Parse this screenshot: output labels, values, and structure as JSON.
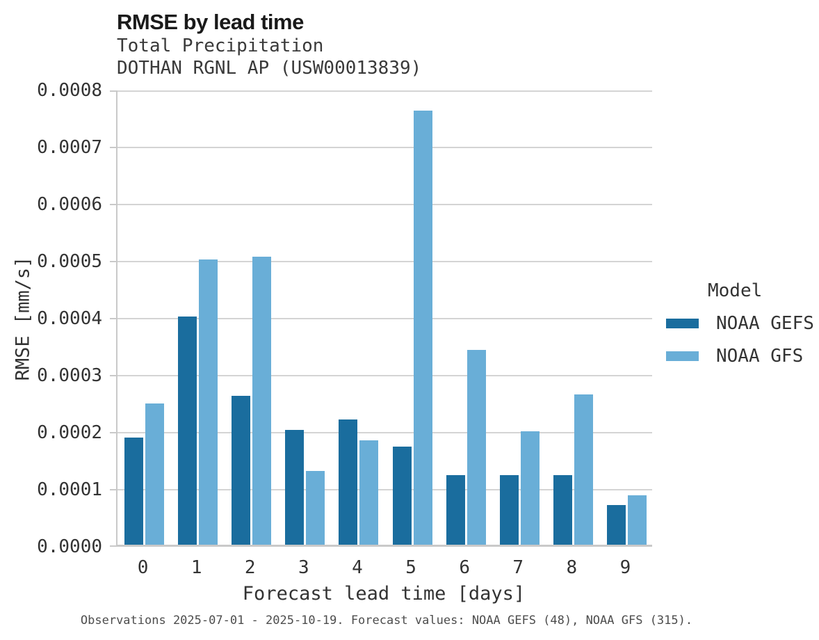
{
  "title": "RMSE by lead time",
  "subtitle_line1": "Total Precipitation",
  "subtitle_line2": "DOTHAN RGNL AP (USW00013839)",
  "footer": "Observations 2025-07-01 - 2025-10-19. Forecast values: NOAA GEFS (48), NOAA GFS (315).",
  "colors": {
    "gefs_bar": "#1a6d9e",
    "gfs_bar": "#69aed7",
    "gridline": "#d4d4d4",
    "spine": "#c9c9c9"
  },
  "chart_data": {
    "type": "bar",
    "title": "RMSE by lead time",
    "subtitle": [
      "Total Precipitation",
      "DOTHAN RGNL AP (USW00013839)"
    ],
    "xlabel": "Forecast lead time [days]",
    "ylabel": "RMSE [mm/s]",
    "categories": [
      "0",
      "1",
      "2",
      "3",
      "4",
      "5",
      "6",
      "7",
      "8",
      "9"
    ],
    "series": [
      {
        "name": "NOAA GEFS",
        "color": "#1a6d9e",
        "values": [
          0.000188,
          0.0004,
          0.000261,
          0.000201,
          0.000219,
          0.000172,
          0.000122,
          0.000122,
          0.000122,
          6.9e-05
        ]
      },
      {
        "name": "NOAA GFS",
        "color": "#69aed7",
        "values": [
          0.000248,
          0.0005,
          0.000505,
          0.000129,
          0.000183,
          0.000761,
          0.000342,
          0.000199,
          0.000263,
          8.6e-05
        ]
      }
    ],
    "ylim": [
      0,
      0.0008
    ],
    "ytick_step": 0.0001,
    "ytick_labels": [
      "0.0000",
      "0.0001",
      "0.0002",
      "0.0003",
      "0.0004",
      "0.0005",
      "0.0006",
      "0.0007",
      "0.0008"
    ],
    "grid": true,
    "legend_title": "Model",
    "legend_position": "right",
    "footnote": "Observations 2025-07-01 - 2025-10-19. Forecast values: NOAA GEFS (48), NOAA GFS (315)."
  }
}
